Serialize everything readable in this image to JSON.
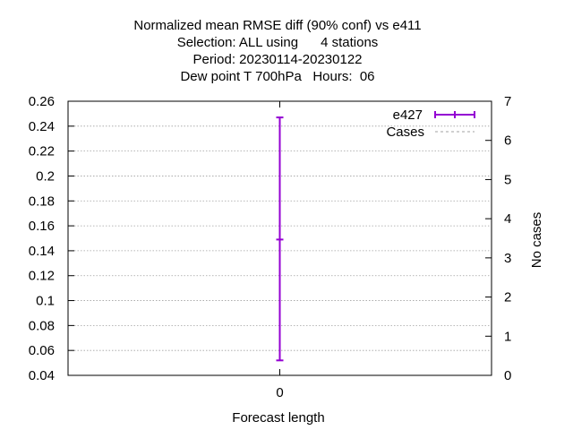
{
  "chart_data": {
    "type": "errorbar",
    "title_lines": [
      "Normalized mean RMSE diff (90% conf) vs e411",
      "Selection: ALL using      4 stations",
      "Period: 20230114-20230122",
      "Dew point T 700hPa   Hours:  06"
    ],
    "xlabel": "Forecast length",
    "ylabel": "",
    "y2label": "No cases",
    "x_categories": [
      "0"
    ],
    "ylim": [
      0.04,
      0.26
    ],
    "yticks": [
      "0.04",
      "0.06",
      "0.08",
      "0.1",
      "0.12",
      "0.14",
      "0.16",
      "0.18",
      "0.2",
      "0.22",
      "0.24",
      "0.26"
    ],
    "y2lim": [
      0,
      7
    ],
    "y2ticks": [
      "0",
      "1",
      "2",
      "3",
      "4",
      "5",
      "6",
      "7"
    ],
    "grid": true,
    "legend_position": "top-right",
    "series": [
      {
        "name": "e427",
        "color": "#9400d3",
        "style": "errorbar",
        "points": [
          {
            "x": "0",
            "y": 0.149,
            "low": 0.052,
            "high": 0.247
          }
        ]
      },
      {
        "name": "Cases",
        "color": "#a0a0a0",
        "style": "dashed",
        "axis": "y2",
        "points": []
      }
    ]
  }
}
